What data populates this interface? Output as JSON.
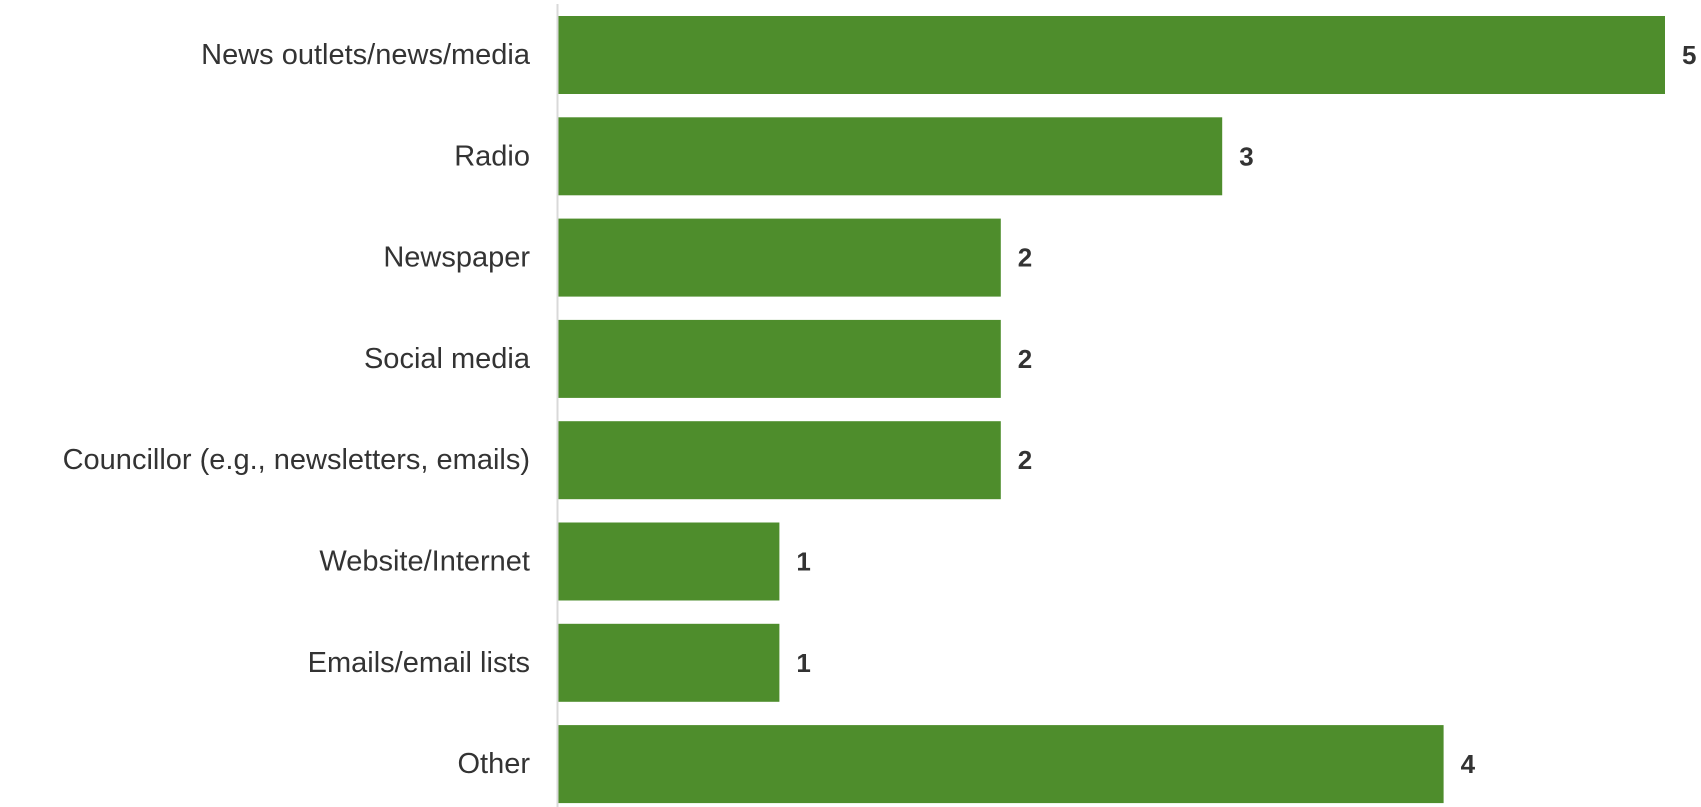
{
  "chart_data": {
    "type": "bar",
    "orientation": "horizontal",
    "categories": [
      "News outlets/news/media",
      "Radio",
      "Newspaper",
      "Social media",
      "Councillor (e.g., newsletters, emails)",
      "Website/Internet",
      "Emails/email lists",
      "Other"
    ],
    "values": [
      5,
      3,
      2,
      2,
      2,
      1,
      1,
      4
    ],
    "xlim": [
      0,
      5
    ],
    "grid": false,
    "legend": "none",
    "data_labels": true,
    "bar_color": "#4e8d2c",
    "axis_color": "#d9d9d9",
    "text_color": "#333333"
  }
}
